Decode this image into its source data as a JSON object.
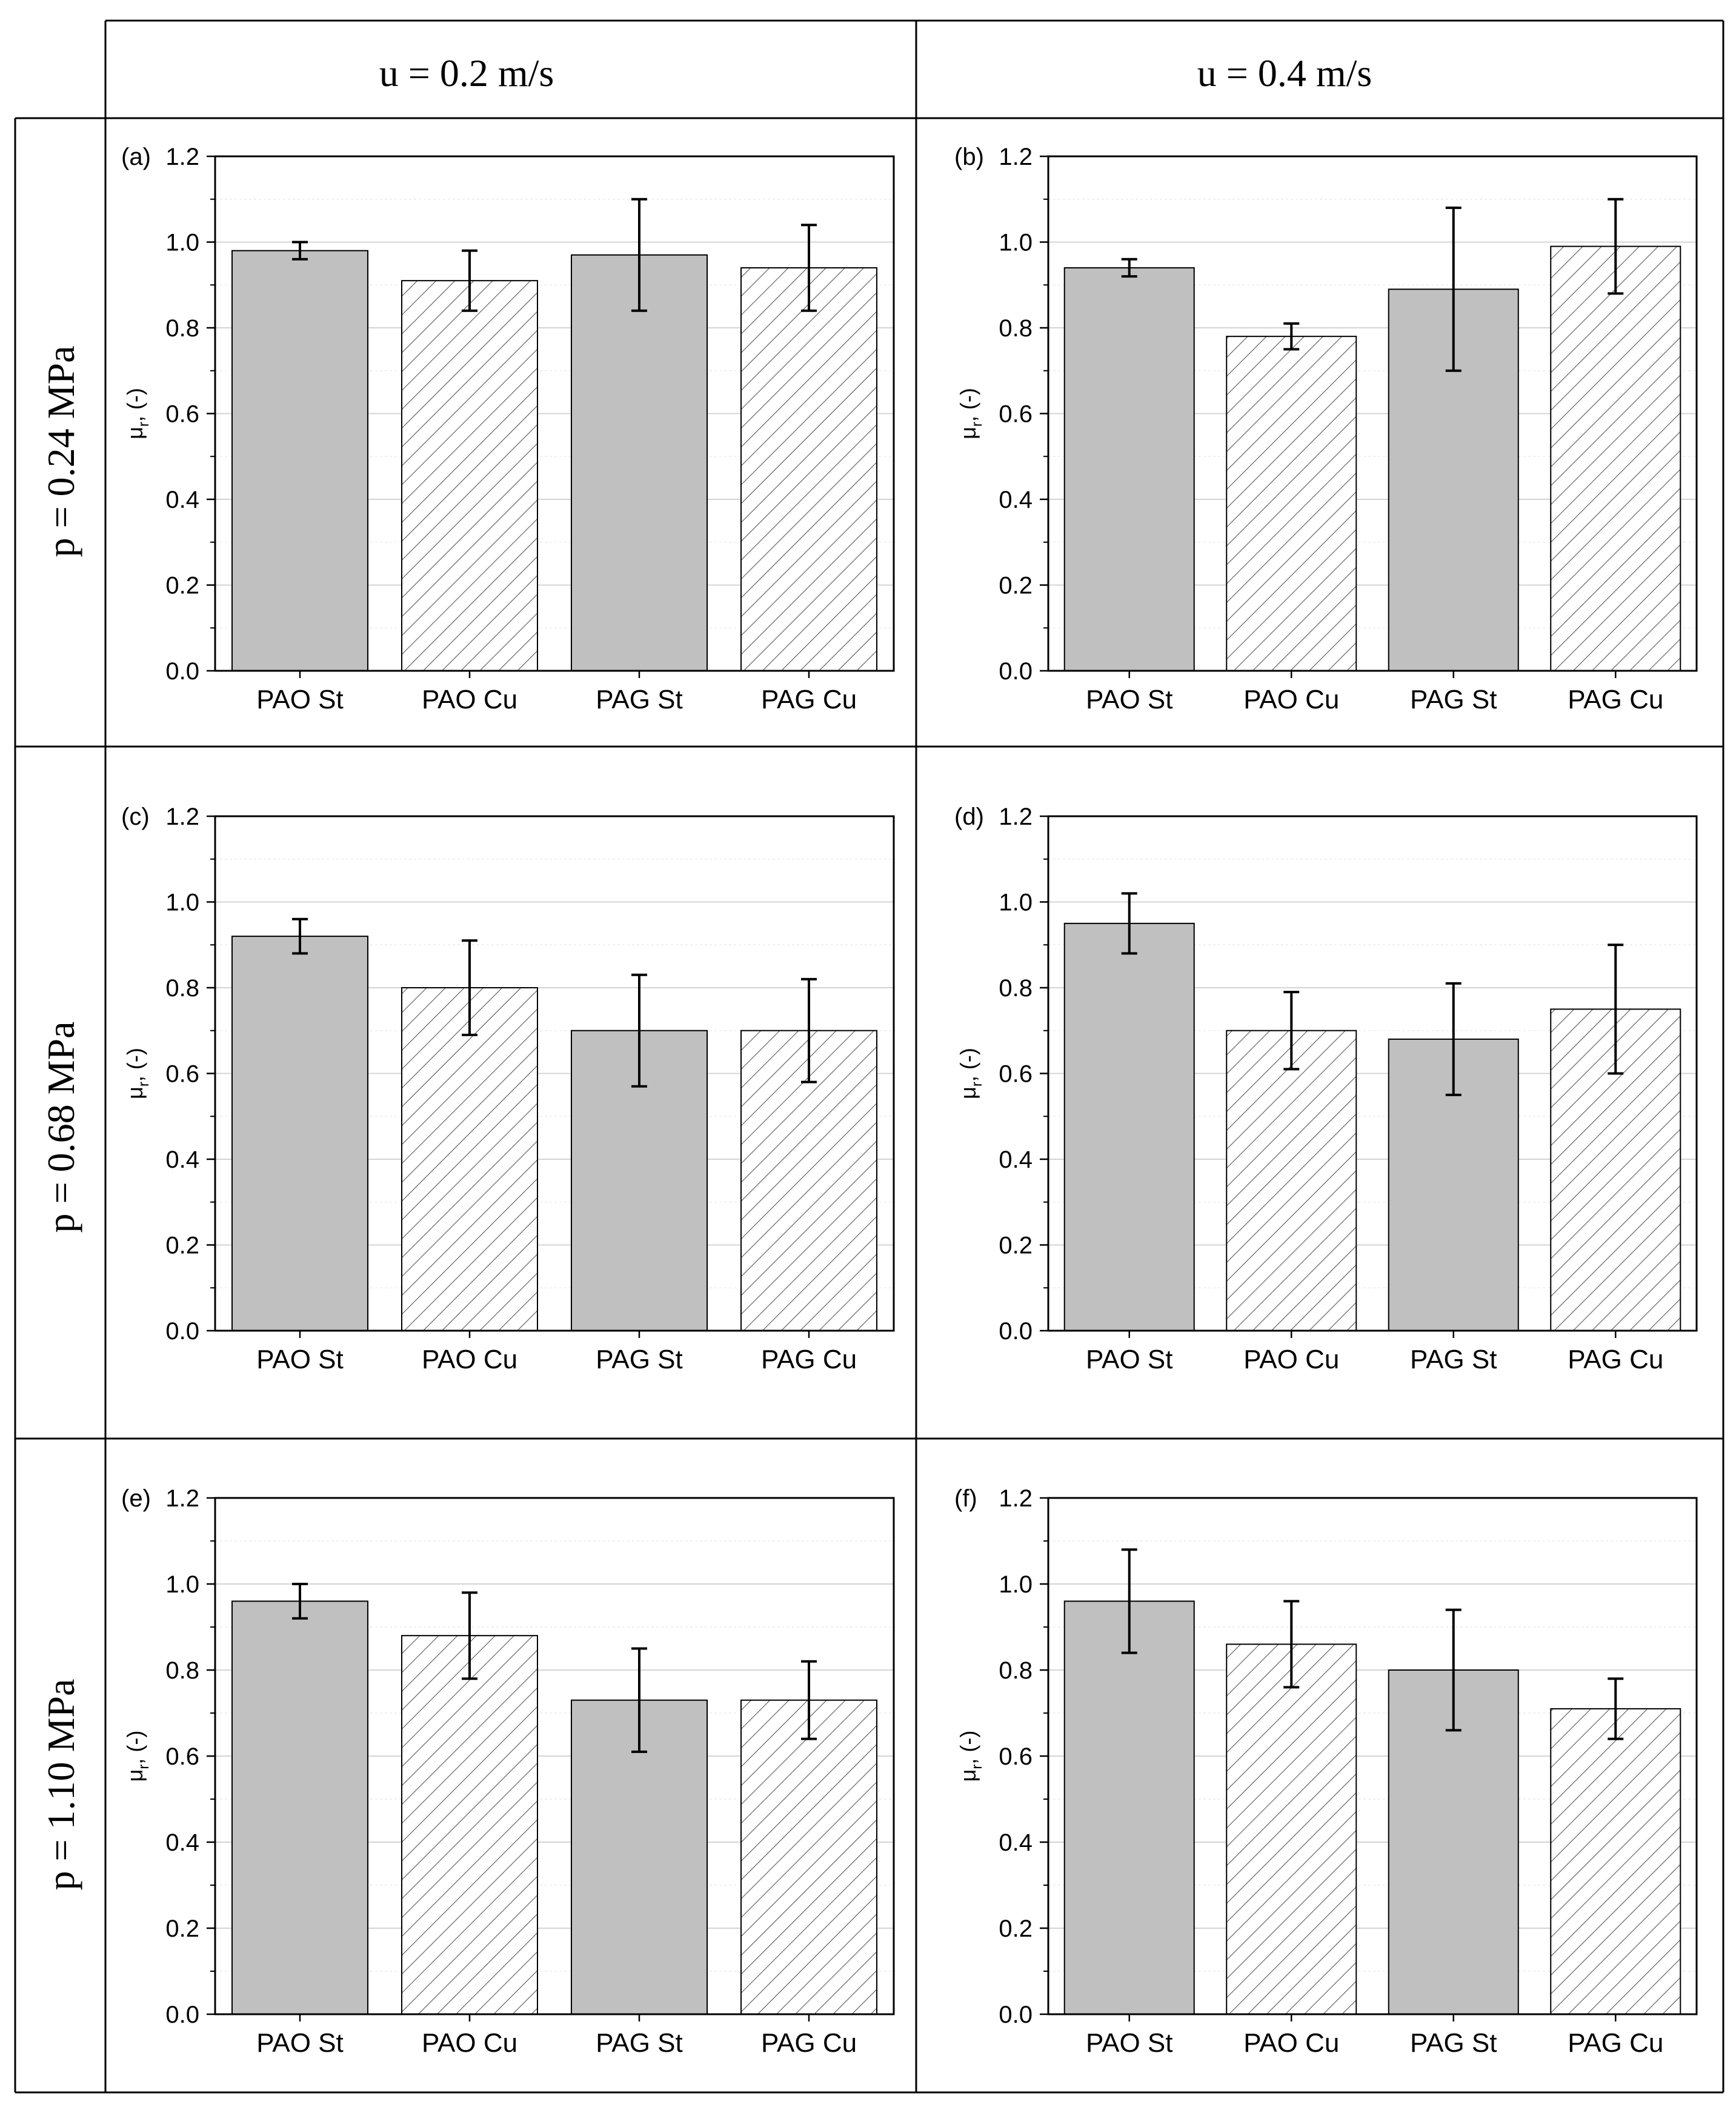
{
  "table": {
    "col_headers": [
      "u = 0.2 m/s",
      "u = 0.4 m/s"
    ],
    "row_headers": [
      "p = 0.24 MPa",
      "p = 0.68 MPa",
      "p = 1.10 MPa"
    ]
  },
  "chart_data": [
    {
      "type": "bar",
      "panel": "(a)",
      "categories": [
        "PAO St",
        "PAO Cu",
        "PAG St",
        "PAG Cu"
      ],
      "values": [
        0.98,
        0.91,
        0.97,
        0.94
      ],
      "errors": [
        0.02,
        0.07,
        0.13,
        0.1
      ],
      "ylabel_main": "μ",
      "ylabel_sub": "r",
      "ylabel_suffix": ", (-)",
      "ylim": [
        0,
        1.2
      ],
      "yticks": [
        "0.0",
        "0.2",
        "0.4",
        "0.6",
        "0.8",
        "1.0",
        "1.2"
      ],
      "fills": [
        "solid",
        "hatched",
        "solid",
        "hatched"
      ],
      "fill_color": "#c0c0c0"
    },
    {
      "type": "bar",
      "panel": "(b)",
      "categories": [
        "PAO St",
        "PAO Cu",
        "PAG St",
        "PAG Cu"
      ],
      "values": [
        0.94,
        0.78,
        0.89,
        0.99
      ],
      "errors": [
        0.02,
        0.03,
        0.19,
        0.11
      ],
      "ylabel_main": "μ",
      "ylabel_sub": "r",
      "ylabel_suffix": ", (-)",
      "ylim": [
        0,
        1.2
      ],
      "yticks": [
        "0.0",
        "0.2",
        "0.4",
        "0.6",
        "0.8",
        "1.0",
        "1.2"
      ],
      "fills": [
        "solid",
        "hatched",
        "solid",
        "hatched"
      ],
      "fill_color": "#c0c0c0"
    },
    {
      "type": "bar",
      "panel": "(c)",
      "categories": [
        "PAO St",
        "PAO Cu",
        "PAG St",
        "PAG Cu"
      ],
      "values": [
        0.92,
        0.8,
        0.7,
        0.7
      ],
      "errors": [
        0.04,
        0.11,
        0.13,
        0.12
      ],
      "ylabel_main": "μ",
      "ylabel_sub": "r",
      "ylabel_suffix": ", (-)",
      "ylim": [
        0,
        1.2
      ],
      "yticks": [
        "0.0",
        "0.2",
        "0.4",
        "0.6",
        "0.8",
        "1.0",
        "1.2"
      ],
      "fills": [
        "solid",
        "hatched",
        "solid",
        "hatched"
      ],
      "fill_color": "#c0c0c0"
    },
    {
      "type": "bar",
      "panel": "(d)",
      "categories": [
        "PAO St",
        "PAO Cu",
        "PAG St",
        "PAG Cu"
      ],
      "values": [
        0.95,
        0.7,
        0.68,
        0.75
      ],
      "errors": [
        0.07,
        0.09,
        0.13,
        0.15
      ],
      "ylabel_main": "μ",
      "ylabel_sub": "r",
      "ylabel_suffix": ", (-)",
      "ylim": [
        0,
        1.2
      ],
      "yticks": [
        "0.0",
        "0.2",
        "0.4",
        "0.6",
        "0.8",
        "1.0",
        "1.2"
      ],
      "fills": [
        "solid",
        "hatched",
        "solid",
        "hatched"
      ],
      "fill_color": "#c0c0c0"
    },
    {
      "type": "bar",
      "panel": "(e)",
      "categories": [
        "PAO St",
        "PAO Cu",
        "PAG St",
        "PAG Cu"
      ],
      "values": [
        0.96,
        0.88,
        0.73,
        0.73
      ],
      "errors": [
        0.04,
        0.1,
        0.12,
        0.09
      ],
      "ylabel_main": "μ",
      "ylabel_sub": "r",
      "ylabel_suffix": ", (-)",
      "ylim": [
        0,
        1.2
      ],
      "yticks": [
        "0.0",
        "0.2",
        "0.4",
        "0.6",
        "0.8",
        "1.0",
        "1.2"
      ],
      "fills": [
        "solid",
        "hatched",
        "solid",
        "hatched"
      ],
      "fill_color": "#c0c0c0"
    },
    {
      "type": "bar",
      "panel": "(f)",
      "categories": [
        "PAO St",
        "PAO Cu",
        "PAG St",
        "PAG Cu"
      ],
      "values": [
        0.96,
        0.86,
        0.8,
        0.71
      ],
      "errors": [
        0.12,
        0.1,
        0.14,
        0.07
      ],
      "ylabel_main": "μ",
      "ylabel_sub": "r",
      "ylabel_suffix": ", (-)",
      "ylim": [
        0,
        1.2
      ],
      "yticks": [
        "0.0",
        "0.2",
        "0.4",
        "0.6",
        "0.8",
        "1.0",
        "1.2"
      ],
      "fills": [
        "solid",
        "hatched",
        "solid",
        "hatched"
      ],
      "fill_color": "#c0c0c0"
    }
  ]
}
